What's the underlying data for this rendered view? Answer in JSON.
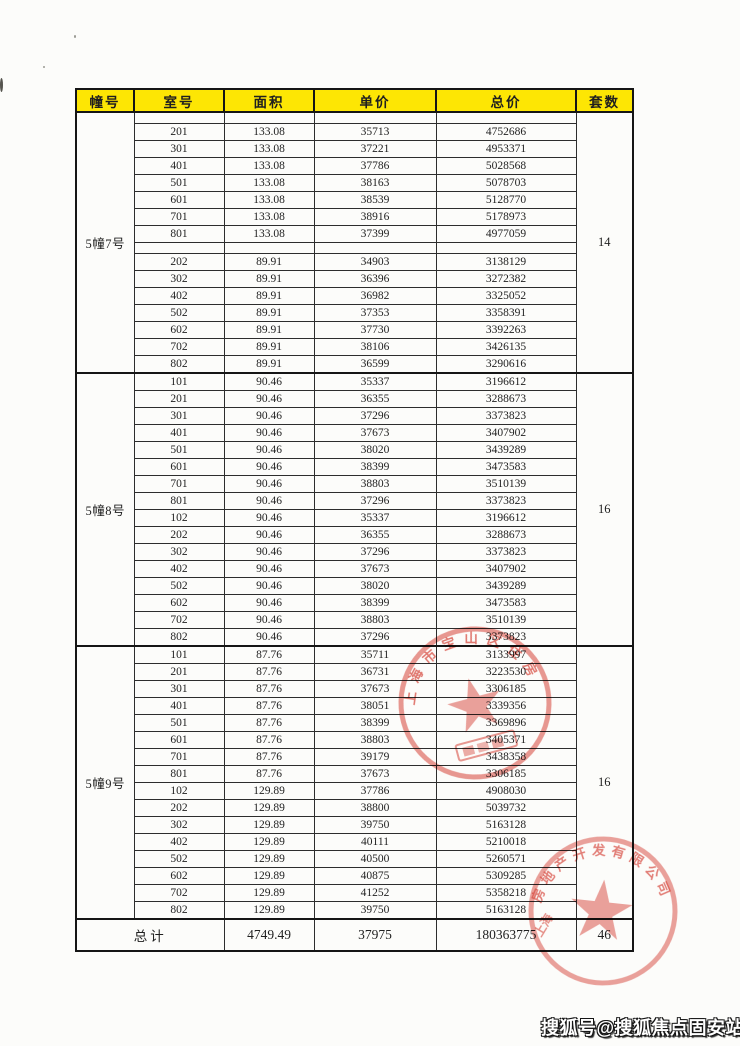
{
  "colors": {
    "header_bg": "#fde604",
    "seal_red": "#d9463b",
    "border": "#151515",
    "text": "#1f1f1f"
  },
  "table": {
    "headers": [
      "幢号",
      "室号",
      "面积",
      "单价",
      "总价",
      "套数"
    ],
    "sections": [
      {
        "building": "5幢7号",
        "count": "14",
        "rows": [
          [
            "",
            "",
            "",
            ""
          ],
          [
            "201",
            "133.08",
            "35713",
            "4752686"
          ],
          [
            "301",
            "133.08",
            "37221",
            "4953371"
          ],
          [
            "401",
            "133.08",
            "37786",
            "5028568"
          ],
          [
            "501",
            "133.08",
            "38163",
            "5078703"
          ],
          [
            "601",
            "133.08",
            "38539",
            "5128770"
          ],
          [
            "701",
            "133.08",
            "38916",
            "5178973"
          ],
          [
            "801",
            "133.08",
            "37399",
            "4977059"
          ],
          [
            "",
            "",
            "",
            ""
          ],
          [
            "202",
            "89.91",
            "34903",
            "3138129"
          ],
          [
            "302",
            "89.91",
            "36396",
            "3272382"
          ],
          [
            "402",
            "89.91",
            "36982",
            "3325052"
          ],
          [
            "502",
            "89.91",
            "37353",
            "3358391"
          ],
          [
            "602",
            "89.91",
            "37730",
            "3392263"
          ],
          [
            "702",
            "89.91",
            "38106",
            "3426135"
          ],
          [
            "802",
            "89.91",
            "36599",
            "3290616"
          ]
        ]
      },
      {
        "building": "5幢8号",
        "count": "16",
        "rows": [
          [
            "101",
            "90.46",
            "35337",
            "3196612"
          ],
          [
            "201",
            "90.46",
            "36355",
            "3288673"
          ],
          [
            "301",
            "90.46",
            "37296",
            "3373823"
          ],
          [
            "401",
            "90.46",
            "37673",
            "3407902"
          ],
          [
            "501",
            "90.46",
            "38020",
            "3439289"
          ],
          [
            "601",
            "90.46",
            "38399",
            "3473583"
          ],
          [
            "701",
            "90.46",
            "38803",
            "3510139"
          ],
          [
            "801",
            "90.46",
            "37296",
            "3373823"
          ],
          [
            "102",
            "90.46",
            "35337",
            "3196612"
          ],
          [
            "202",
            "90.46",
            "36355",
            "3288673"
          ],
          [
            "302",
            "90.46",
            "37296",
            "3373823"
          ],
          [
            "402",
            "90.46",
            "37673",
            "3407902"
          ],
          [
            "502",
            "90.46",
            "38020",
            "3439289"
          ],
          [
            "602",
            "90.46",
            "38399",
            "3473583"
          ],
          [
            "702",
            "90.46",
            "38803",
            "3510139"
          ],
          [
            "802",
            "90.46",
            "37296",
            "3373823"
          ]
        ]
      },
      {
        "building": "5幢9号",
        "count": "16",
        "rows": [
          [
            "101",
            "87.76",
            "35711",
            "3133997"
          ],
          [
            "201",
            "87.76",
            "36731",
            "3223530"
          ],
          [
            "301",
            "87.76",
            "37673",
            "3306185"
          ],
          [
            "401",
            "87.76",
            "38051",
            "3339356"
          ],
          [
            "501",
            "87.76",
            "38399",
            "3369896"
          ],
          [
            "601",
            "87.76",
            "38803",
            "3405371"
          ],
          [
            "701",
            "87.76",
            "39179",
            "3438358"
          ],
          [
            "801",
            "87.76",
            "37673",
            "3306185"
          ],
          [
            "102",
            "129.89",
            "37786",
            "4908030"
          ],
          [
            "202",
            "129.89",
            "38800",
            "5039732"
          ],
          [
            "302",
            "129.89",
            "39750",
            "5163128"
          ],
          [
            "402",
            "129.89",
            "40111",
            "5210018"
          ],
          [
            "502",
            "129.89",
            "40500",
            "5260571"
          ],
          [
            "602",
            "129.89",
            "40875",
            "5309285"
          ],
          [
            "702",
            "129.89",
            "41252",
            "5358218"
          ],
          [
            "802",
            "129.89",
            "39750",
            "5163128"
          ]
        ]
      }
    ],
    "total": {
      "label": "总计",
      "area": "4749.49",
      "unit_price": "37975",
      "total_price": "180363775",
      "count": "46"
    }
  },
  "stamps": [
    {
      "arc_text": "上海市宝山区住房",
      "symbol": "star"
    },
    {
      "arc_text": "房地产开发有限公司",
      "side_text": "上海",
      "symbol": "star"
    }
  ],
  "watermark": {
    "text": "搜狐号@搜狐焦点固安站"
  }
}
